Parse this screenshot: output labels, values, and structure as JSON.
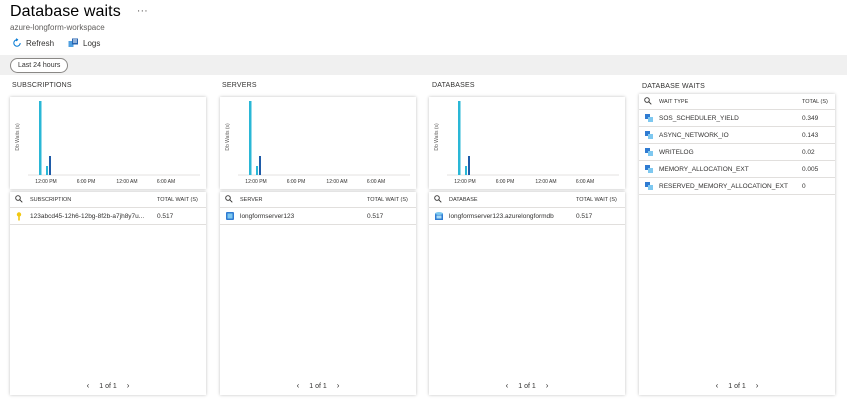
{
  "header": {
    "title": "Database waits",
    "subtitle": "azure-longform-workspace",
    "more": "···"
  },
  "toolbar": {
    "refresh_label": "Refresh",
    "logs_label": "Logs"
  },
  "filter": {
    "time_range": "Last 24 hours"
  },
  "chart_axis": {
    "ylabel": "Db Waits (s)",
    "xticks": [
      "12:00 PM",
      "6:00 PM",
      "12:00 AM",
      "6:00 AM"
    ]
  },
  "subscriptions": {
    "title": "SUBSCRIPTIONS",
    "col1": "SUBSCRIPTION",
    "col2": "TOTAL WAIT (S)",
    "rows": [
      {
        "name": "123abcd45-12h6-12bg-8f2b-a7jh8y7u...",
        "value": "0.517"
      }
    ],
    "pager": "1 of 1"
  },
  "servers": {
    "title": "SERVERS",
    "col1": "SERVER",
    "col2": "TOTAL WAIT (S)",
    "rows": [
      {
        "name": "longformserver123",
        "value": "0.517"
      }
    ],
    "pager": "1 of 1"
  },
  "databases": {
    "title": "DATABASES",
    "col1": "DATABASE",
    "col2": "TOTAL WAIT (S)",
    "rows": [
      {
        "name": "longformserver123.azurelongformdb",
        "value": "0.517"
      }
    ],
    "pager": "1 of 1"
  },
  "database_waits": {
    "title": "DATABASE WAITS",
    "col1": "WAIT TYPE",
    "col2": "TOTAL (S)",
    "rows": [
      {
        "name": "SOS_SCHEDULER_YIELD",
        "value": "0.349"
      },
      {
        "name": "ASYNC_NETWORK_IO",
        "value": "0.143"
      },
      {
        "name": "WRITELOG",
        "value": "0.02"
      },
      {
        "name": "MEMORY_ALLOCATION_EXT",
        "value": "0.005"
      },
      {
        "name": "RESERVED_MEMORY_ALLOCATION_EXT",
        "value": "0"
      }
    ],
    "pager": "1 of 1"
  },
  "colors": {
    "bar_cyan": "#2ab7d6",
    "bar_blue": "#1f5ba8",
    "accent": "#0078d4"
  }
}
